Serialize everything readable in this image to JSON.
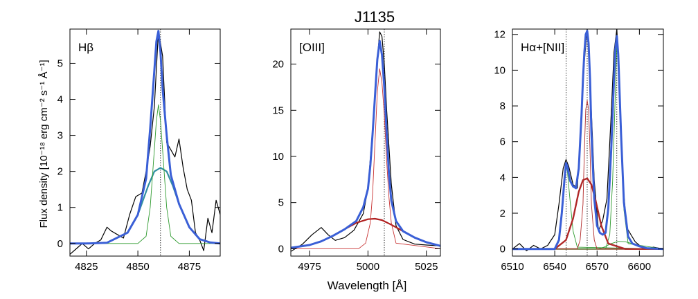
{
  "figure": {
    "title": "J1135",
    "xlabel": "Wavelength [Å]",
    "ylabel": "Flux density [10⁻¹⁸ erg cm⁻² s⁻¹ Å⁻¹]"
  },
  "colors": {
    "data": "#000000",
    "total_fit": "#3a5fd6",
    "narrow": "#2e9a2e",
    "broad_hb": "#2f8fa0",
    "oiii_narrow": "#c83232",
    "oiii_broad": "#b02020",
    "ha_narrow": "#b02828",
    "continuum": "#8a5a3a"
  },
  "chart_data": [
    {
      "type": "line",
      "panel_label": "Hβ",
      "xlim": [
        4817,
        4890
      ],
      "ylim": [
        -0.35,
        5.95
      ],
      "x_ticks": [
        4825,
        4850,
        4875
      ],
      "y_ticks": [
        0,
        1,
        2,
        3,
        4,
        5
      ],
      "ref_lines": [
        4861
      ],
      "series": [
        {
          "role": "data",
          "color_key": "data",
          "x": [
            4817,
            4821,
            4823,
            4826,
            4829,
            4832,
            4835,
            4837,
            4840,
            4843,
            4846,
            4849,
            4852,
            4854,
            4856,
            4858,
            4860,
            4862,
            4864,
            4866,
            4868,
            4870,
            4872,
            4874,
            4876,
            4878,
            4880,
            4882,
            4884,
            4886,
            4888,
            4890
          ],
          "y": [
            -0.3,
            -0.1,
            0.0,
            -0.15,
            0.0,
            0.1,
            0.45,
            0.35,
            0.25,
            0.15,
            0.8,
            1.3,
            1.4,
            2.0,
            2.7,
            3.8,
            5.9,
            5.2,
            2.8,
            2.6,
            2.4,
            2.9,
            2.1,
            1.5,
            1.2,
            0.3,
            0.1,
            -0.2,
            0.7,
            0.3,
            1.2,
            0.8
          ]
        },
        {
          "role": "broad",
          "color_key": "broad_hb",
          "x": [
            4817,
            4825,
            4835,
            4845,
            4850,
            4855,
            4858,
            4861,
            4864,
            4867,
            4870,
            4875,
            4880,
            4885,
            4890
          ],
          "y": [
            0.0,
            0.0,
            0.02,
            0.3,
            0.8,
            1.6,
            2.0,
            2.1,
            2.0,
            1.6,
            1.1,
            0.45,
            0.12,
            0.03,
            0.0
          ]
        },
        {
          "role": "narrow",
          "color_key": "narrow",
          "x": [
            4817,
            4850,
            4854,
            4856,
            4858,
            4859,
            4860,
            4861,
            4862,
            4864,
            4866,
            4870,
            4890
          ],
          "y": [
            0.0,
            0.0,
            0.2,
            1.0,
            2.6,
            3.4,
            3.85,
            3.4,
            2.6,
            1.0,
            0.2,
            0.0,
            0.0
          ]
        },
        {
          "role": "total",
          "color_key": "total_fit",
          "x": [
            4817,
            4825,
            4835,
            4845,
            4850,
            4854,
            4856,
            4858,
            4859,
            4860,
            4861,
            4862,
            4864,
            4866,
            4870,
            4875,
            4880,
            4885,
            4890
          ],
          "y": [
            0.0,
            0.0,
            0.02,
            0.3,
            0.8,
            1.8,
            3.2,
            4.8,
            5.6,
            5.9,
            5.3,
            4.3,
            3.0,
            1.9,
            1.1,
            0.45,
            0.12,
            0.03,
            0.0
          ]
        }
      ]
    },
    {
      "type": "line",
      "panel_label": "[OIII]",
      "xlim": [
        4967,
        5031
      ],
      "ylim": [
        -0.8,
        23.8
      ],
      "x_ticks": [
        4975,
        5000,
        5025
      ],
      "y_ticks": [
        0,
        5,
        10,
        15,
        20
      ],
      "ref_lines": [
        5007
      ],
      "series": [
        {
          "role": "data",
          "color_key": "data",
          "x": [
            4967,
            4972,
            4976,
            4980,
            4983,
            4986,
            4990,
            4994,
            4998,
            5000,
            5002,
            5004,
            5005,
            5006,
            5007,
            5008,
            5010,
            5012,
            5015,
            5020,
            5025,
            5031
          ],
          "y": [
            -0.3,
            0.5,
            1.5,
            2.3,
            1.5,
            0.9,
            1.2,
            2.0,
            3.8,
            6.5,
            13.0,
            20.5,
            23.5,
            23.0,
            20.0,
            15.0,
            7.0,
            2.5,
            1.0,
            0.5,
            0.4,
            0.3
          ]
        },
        {
          "role": "broad",
          "color_key": "oiii_broad",
          "x": [
            4967,
            4975,
            4980,
            4985,
            4990,
            4995,
            5000,
            5003,
            5006,
            5010,
            5015,
            5020,
            5025,
            5031
          ],
          "y": [
            0.1,
            0.4,
            0.8,
            1.4,
            2.1,
            2.8,
            3.2,
            3.25,
            3.1,
            2.6,
            1.9,
            1.2,
            0.7,
            0.3
          ]
        },
        {
          "role": "narrow",
          "color_key": "oiii_narrow",
          "x": [
            4967,
            4996,
            4999,
            5001,
            5002,
            5003,
            5004,
            5005,
            5006,
            5007,
            5008,
            5009,
            5010,
            5012,
            5031
          ],
          "y": [
            0.0,
            0.0,
            0.6,
            2.8,
            6.0,
            11.5,
            17.0,
            19.5,
            18.0,
            14.5,
            9.5,
            5.5,
            2.8,
            0.6,
            0.0
          ]
        },
        {
          "role": "total",
          "color_key": "total_fit",
          "x": [
            4967,
            4975,
            4980,
            4985,
            4990,
            4995,
            4998,
            5000,
            5001,
            5002,
            5003,
            5004,
            5005,
            5006,
            5007,
            5008,
            5009,
            5010,
            5012,
            5015,
            5020,
            5025,
            5031
          ],
          "y": [
            0.1,
            0.4,
            0.8,
            1.4,
            2.1,
            3.0,
            4.5,
            6.5,
            9.0,
            12.5,
            16.5,
            20.5,
            22.5,
            21.0,
            17.5,
            12.5,
            8.0,
            5.2,
            3.0,
            1.9,
            1.2,
            0.7,
            0.3
          ]
        }
      ]
    },
    {
      "type": "line",
      "panel_label": "Hα+[NII]",
      "xlim": [
        6510,
        6617
      ],
      "ylim": [
        -0.4,
        12.3
      ],
      "x_ticks": [
        6510,
        6540,
        6570,
        6600
      ],
      "y_ticks": [
        0,
        2,
        4,
        6,
        8,
        10,
        12
      ],
      "ref_lines": [
        6548,
        6563,
        6584
      ],
      "series": [
        {
          "role": "data",
          "color_key": "data",
          "x": [
            6510,
            6515,
            6520,
            6525,
            6530,
            6535,
            6540,
            6543,
            6546,
            6548,
            6550,
            6553,
            6556,
            6558,
            6561,
            6563,
            6565,
            6568,
            6571,
            6574,
            6577,
            6580,
            6582,
            6584,
            6586,
            6588,
            6591,
            6594,
            6597,
            6600,
            6605,
            6610,
            6617
          ],
          "y": [
            0.0,
            0.3,
            -0.1,
            0.2,
            0.0,
            0.2,
            0.8,
            2.5,
            4.5,
            5.0,
            4.6,
            3.6,
            3.4,
            6.0,
            10.5,
            12.3,
            9.5,
            3.8,
            1.0,
            1.6,
            2.8,
            7.5,
            11.0,
            12.3,
            9.0,
            4.0,
            1.2,
            0.8,
            0.4,
            0.2,
            0.0,
            0.1,
            0.0
          ]
        },
        {
          "role": "continuum",
          "color_key": "continuum",
          "x": [
            6510,
            6617
          ],
          "y": [
            0.0,
            0.0
          ]
        },
        {
          "role": "ha_broad",
          "color_key": "ha_narrow",
          "x": [
            6510,
            6540,
            6548,
            6553,
            6557,
            6560,
            6563,
            6566,
            6569,
            6573,
            6578,
            6590,
            6617
          ],
          "y": [
            0.0,
            0.0,
            0.5,
            1.7,
            3.2,
            3.85,
            3.95,
            3.6,
            2.7,
            1.3,
            0.3,
            0.0,
            0.0
          ]
        },
        {
          "role": "ha_narrow",
          "color_key": "ha_narrow",
          "x": [
            6510,
            6556,
            6558,
            6560,
            6561,
            6562,
            6563,
            6564,
            6565,
            6566,
            6568,
            6570,
            6617
          ],
          "y": [
            0.0,
            0.0,
            0.5,
            2.5,
            5.5,
            7.8,
            8.3,
            7.8,
            5.5,
            2.5,
            0.5,
            0.0,
            0.0
          ]
        },
        {
          "role": "nii_6548",
          "color_key": "narrow",
          "x": [
            6510,
            6540,
            6543,
            6545,
            6547,
            6548,
            6549,
            6551,
            6553,
            6556,
            6617
          ],
          "y": [
            0.0,
            0.0,
            0.5,
            2.0,
            4.0,
            4.7,
            4.3,
            2.6,
            1.0,
            0.1,
            0.0
          ]
        },
        {
          "role": "nii_6584",
          "color_key": "narrow",
          "x": [
            6510,
            6576,
            6579,
            6581,
            6583,
            6584,
            6585,
            6587,
            6589,
            6592,
            6617
          ],
          "y": [
            0.0,
            0.0,
            0.8,
            3.8,
            8.8,
            11.5,
            10.5,
            6.0,
            2.2,
            0.3,
            0.0
          ]
        },
        {
          "role": "broad_wing",
          "color_key": "narrow",
          "x": [
            6510,
            6570,
            6575,
            6580,
            6585,
            6590,
            6595,
            6600,
            6605,
            6617
          ],
          "y": [
            0.0,
            0.0,
            0.1,
            0.3,
            0.42,
            0.4,
            0.3,
            0.15,
            0.04,
            0.0
          ]
        },
        {
          "role": "total",
          "color_key": "total_fit",
          "x": [
            6510,
            6530,
            6540,
            6543,
            6545,
            6547,
            6548,
            6549,
            6551,
            6553,
            6555,
            6557,
            6559,
            6560,
            6561,
            6562,
            6563,
            6564,
            6565,
            6566,
            6568,
            6570,
            6572,
            6574,
            6576,
            6578,
            6580,
            6582,
            6583,
            6584,
            6585,
            6587,
            6589,
            6592,
            6595,
            6600,
            6605,
            6617
          ],
          "y": [
            0.0,
            0.0,
            0.0,
            0.5,
            2.0,
            4.0,
            4.8,
            4.6,
            3.8,
            3.5,
            3.4,
            4.5,
            7.5,
            9.5,
            11.0,
            12.0,
            12.2,
            11.5,
            9.5,
            6.5,
            2.8,
            1.3,
            0.9,
            0.8,
            0.9,
            2.3,
            5.5,
            9.5,
            11.2,
            11.9,
            10.9,
            6.4,
            2.6,
            0.7,
            0.3,
            0.15,
            0.04,
            0.0
          ]
        }
      ]
    }
  ]
}
